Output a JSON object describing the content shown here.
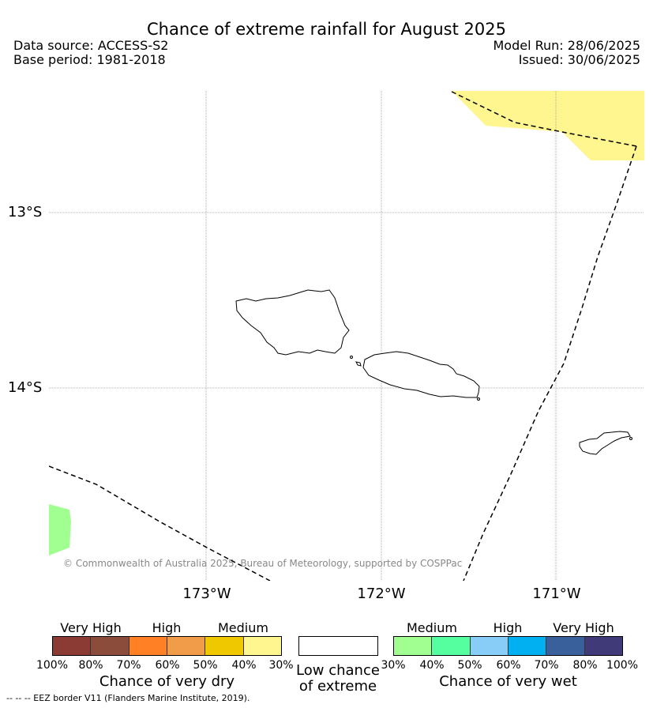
{
  "header": {
    "title": "Chance of extreme rainfall for August 2025",
    "data_source": "Data source: ACCESS-S2",
    "base_period": "Base period: 1981-2018",
    "model_run": "Model Run: 28/06/2025",
    "issued": "Issued: 30/06/2025"
  },
  "map": {
    "lat_labels": [
      "13°S",
      "14°S"
    ],
    "lon_labels": [
      "173°W",
      "172°W",
      "171°W"
    ],
    "copyright": "© Commonwealth of Australia 2025, Bureau of Meteorology, supported by COSPPac",
    "colors": {
      "wet_medium_patch": "#a0ff90",
      "dry_medium_patch": "#fff68f"
    }
  },
  "legend": {
    "dry": {
      "categories": [
        "Very High",
        "High",
        "Medium"
      ],
      "ticks": [
        "100%",
        "80%",
        "70%",
        "60%",
        "50%",
        "40%",
        "30%"
      ],
      "title": "Chance of very dry",
      "colors": [
        "#8b3a34",
        "#8b4c3c",
        "#ff8025",
        "#f09c48",
        "#f0c800",
        "#fff68f"
      ]
    },
    "low": {
      "title_line1": "Low chance",
      "title_line2": "of extreme"
    },
    "wet": {
      "categories": [
        "Medium",
        "High",
        "Very High"
      ],
      "ticks": [
        "30%",
        "40%",
        "50%",
        "60%",
        "70%",
        "80%",
        "100%"
      ],
      "title": "Chance of very wet",
      "colors": [
        "#a0ff90",
        "#55ffa0",
        "#88ccf8",
        "#00b0f0",
        "#3a609c",
        "#403a78"
      ]
    }
  },
  "footer": {
    "eez": "--  --  -- EEZ border V11 (Flanders Marine Institute, 2019)."
  }
}
